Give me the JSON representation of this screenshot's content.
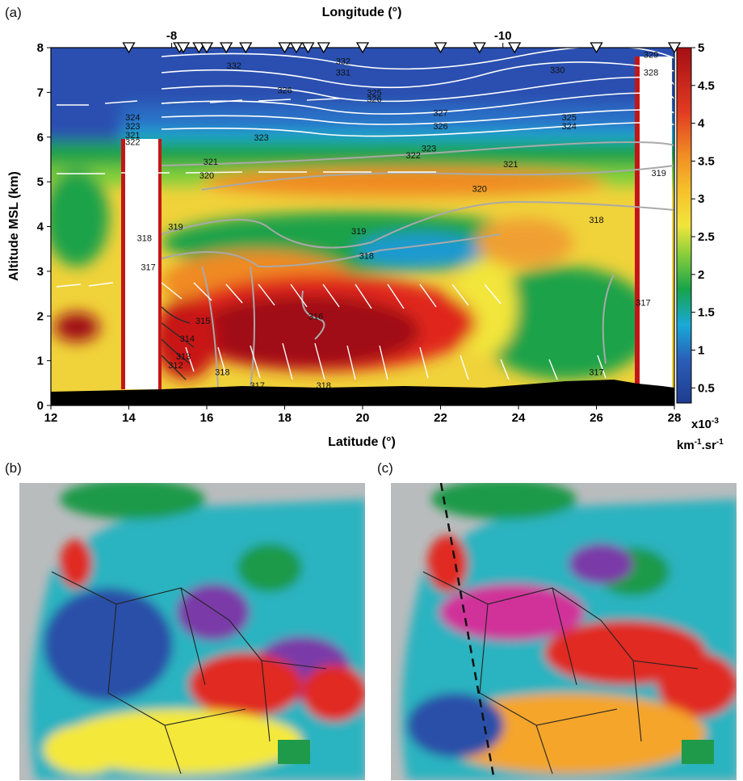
{
  "panels": {
    "a_label": "(a)",
    "b_label": "(b)",
    "c_label": "(c)"
  },
  "colors": {
    "ocean": "#b9bcbd",
    "land_green": "#1f9a4a",
    "cyan": "#2bb3c0",
    "blue": "#2a4fa8",
    "yellow": "#f4e83a",
    "orange": "#f4a52a",
    "red": "#e02a24",
    "darkred": "#9a0e10",
    "magenta": "#d0309a",
    "purple": "#7a3aa8"
  },
  "chart_data": {
    "type": "heatmap",
    "title": "",
    "xlabel": "Latitude (°)",
    "x2label": "Longitude (°)",
    "ylabel": "Altitude MSL (km)",
    "xlim": [
      12,
      28
    ],
    "ylim": [
      0,
      8
    ],
    "x_ticks": [
      12,
      14,
      16,
      18,
      20,
      22,
      24,
      26,
      28
    ],
    "y_ticks": [
      0,
      1,
      2,
      3,
      4,
      5,
      6,
      7,
      8
    ],
    "top_ticks": [
      {
        "label": "-8",
        "lat": 15.1
      },
      {
        "label": "-10",
        "lat": 23.6
      }
    ],
    "overpass_markers_lat": [
      14.0,
      15.3,
      15.4,
      15.8,
      16.0,
      16.5,
      17.0,
      18.0,
      18.3,
      18.6,
      19.0,
      20.0,
      22.0,
      23.0,
      23.9,
      26.0,
      28.0
    ],
    "colorbar": {
      "min": 0.3,
      "max": 5,
      "ticks": [
        "0.5",
        "1",
        "1.5",
        "2",
        "2.5",
        "3",
        "3.5",
        "4",
        "4.5",
        "5"
      ],
      "unit_line1": "x10",
      "unit_exp1": "-3",
      "unit_line2": "km",
      "unit_exp2": "-1",
      "unit_sep": ".sr",
      "unit_exp3": "-1"
    },
    "contour_labels": [
      {
        "text": "332",
        "lat": 16.7,
        "alt": 7.6
      },
      {
        "text": "332",
        "lat": 19.5,
        "alt": 7.7
      },
      {
        "text": "331",
        "lat": 19.5,
        "alt": 7.45
      },
      {
        "text": "330",
        "lat": 25.0,
        "alt": 7.5
      },
      {
        "text": "329",
        "lat": 27.4,
        "alt": 7.85
      },
      {
        "text": "328",
        "lat": 27.4,
        "alt": 7.45
      },
      {
        "text": "326",
        "lat": 18.0,
        "alt": 7.05
      },
      {
        "text": "325",
        "lat": 20.3,
        "alt": 7.0
      },
      {
        "text": "326",
        "lat": 20.3,
        "alt": 6.85
      },
      {
        "text": "327",
        "lat": 22.0,
        "alt": 6.55
      },
      {
        "text": "326",
        "lat": 22.0,
        "alt": 6.25
      },
      {
        "text": "325",
        "lat": 25.3,
        "alt": 6.45
      },
      {
        "text": "324",
        "lat": 25.3,
        "alt": 6.25
      },
      {
        "text": "324",
        "lat": 14.1,
        "alt": 6.45
      },
      {
        "text": "323",
        "lat": 14.1,
        "alt": 6.25
      },
      {
        "text": "322",
        "lat": 14.1,
        "alt": 5.9
      },
      {
        "text": "321",
        "lat": 14.1,
        "alt": 6.05
      },
      {
        "text": "323",
        "lat": 17.4,
        "alt": 6.0
      },
      {
        "text": "321",
        "lat": 16.1,
        "alt": 5.45
      },
      {
        "text": "323",
        "lat": 21.7,
        "alt": 5.75
      },
      {
        "text": "322",
        "lat": 21.3,
        "alt": 5.6
      },
      {
        "text": "321",
        "lat": 23.8,
        "alt": 5.4
      },
      {
        "text": "320",
        "lat": 16.0,
        "alt": 5.15
      },
      {
        "text": "320",
        "lat": 23.0,
        "alt": 4.85
      },
      {
        "text": "319",
        "lat": 27.6,
        "alt": 5.2
      },
      {
        "text": "319",
        "lat": 15.2,
        "alt": 4.0
      },
      {
        "text": "318",
        "lat": 14.4,
        "alt": 3.75
      },
      {
        "text": "319",
        "lat": 19.9,
        "alt": 3.9
      },
      {
        "text": "318",
        "lat": 26.0,
        "alt": 4.15
      },
      {
        "text": "318",
        "lat": 20.1,
        "alt": 3.35
      },
      {
        "text": "317",
        "lat": 14.5,
        "alt": 3.1
      },
      {
        "text": "317",
        "lat": 27.2,
        "alt": 2.3
      },
      {
        "text": "316",
        "lat": 18.8,
        "alt": 2.0
      },
      {
        "text": "315",
        "lat": 15.9,
        "alt": 1.9
      },
      {
        "text": "314",
        "lat": 15.5,
        "alt": 1.5
      },
      {
        "text": "313",
        "lat": 15.4,
        "alt": 1.1
      },
      {
        "text": "312",
        "lat": 15.2,
        "alt": 0.9
      },
      {
        "text": "318",
        "lat": 16.4,
        "alt": 0.75
      },
      {
        "text": "317",
        "lat": 17.3,
        "alt": 0.45
      },
      {
        "text": "318",
        "lat": 19.0,
        "alt": 0.45
      },
      {
        "text": "317",
        "lat": 26.0,
        "alt": 0.75
      }
    ]
  }
}
